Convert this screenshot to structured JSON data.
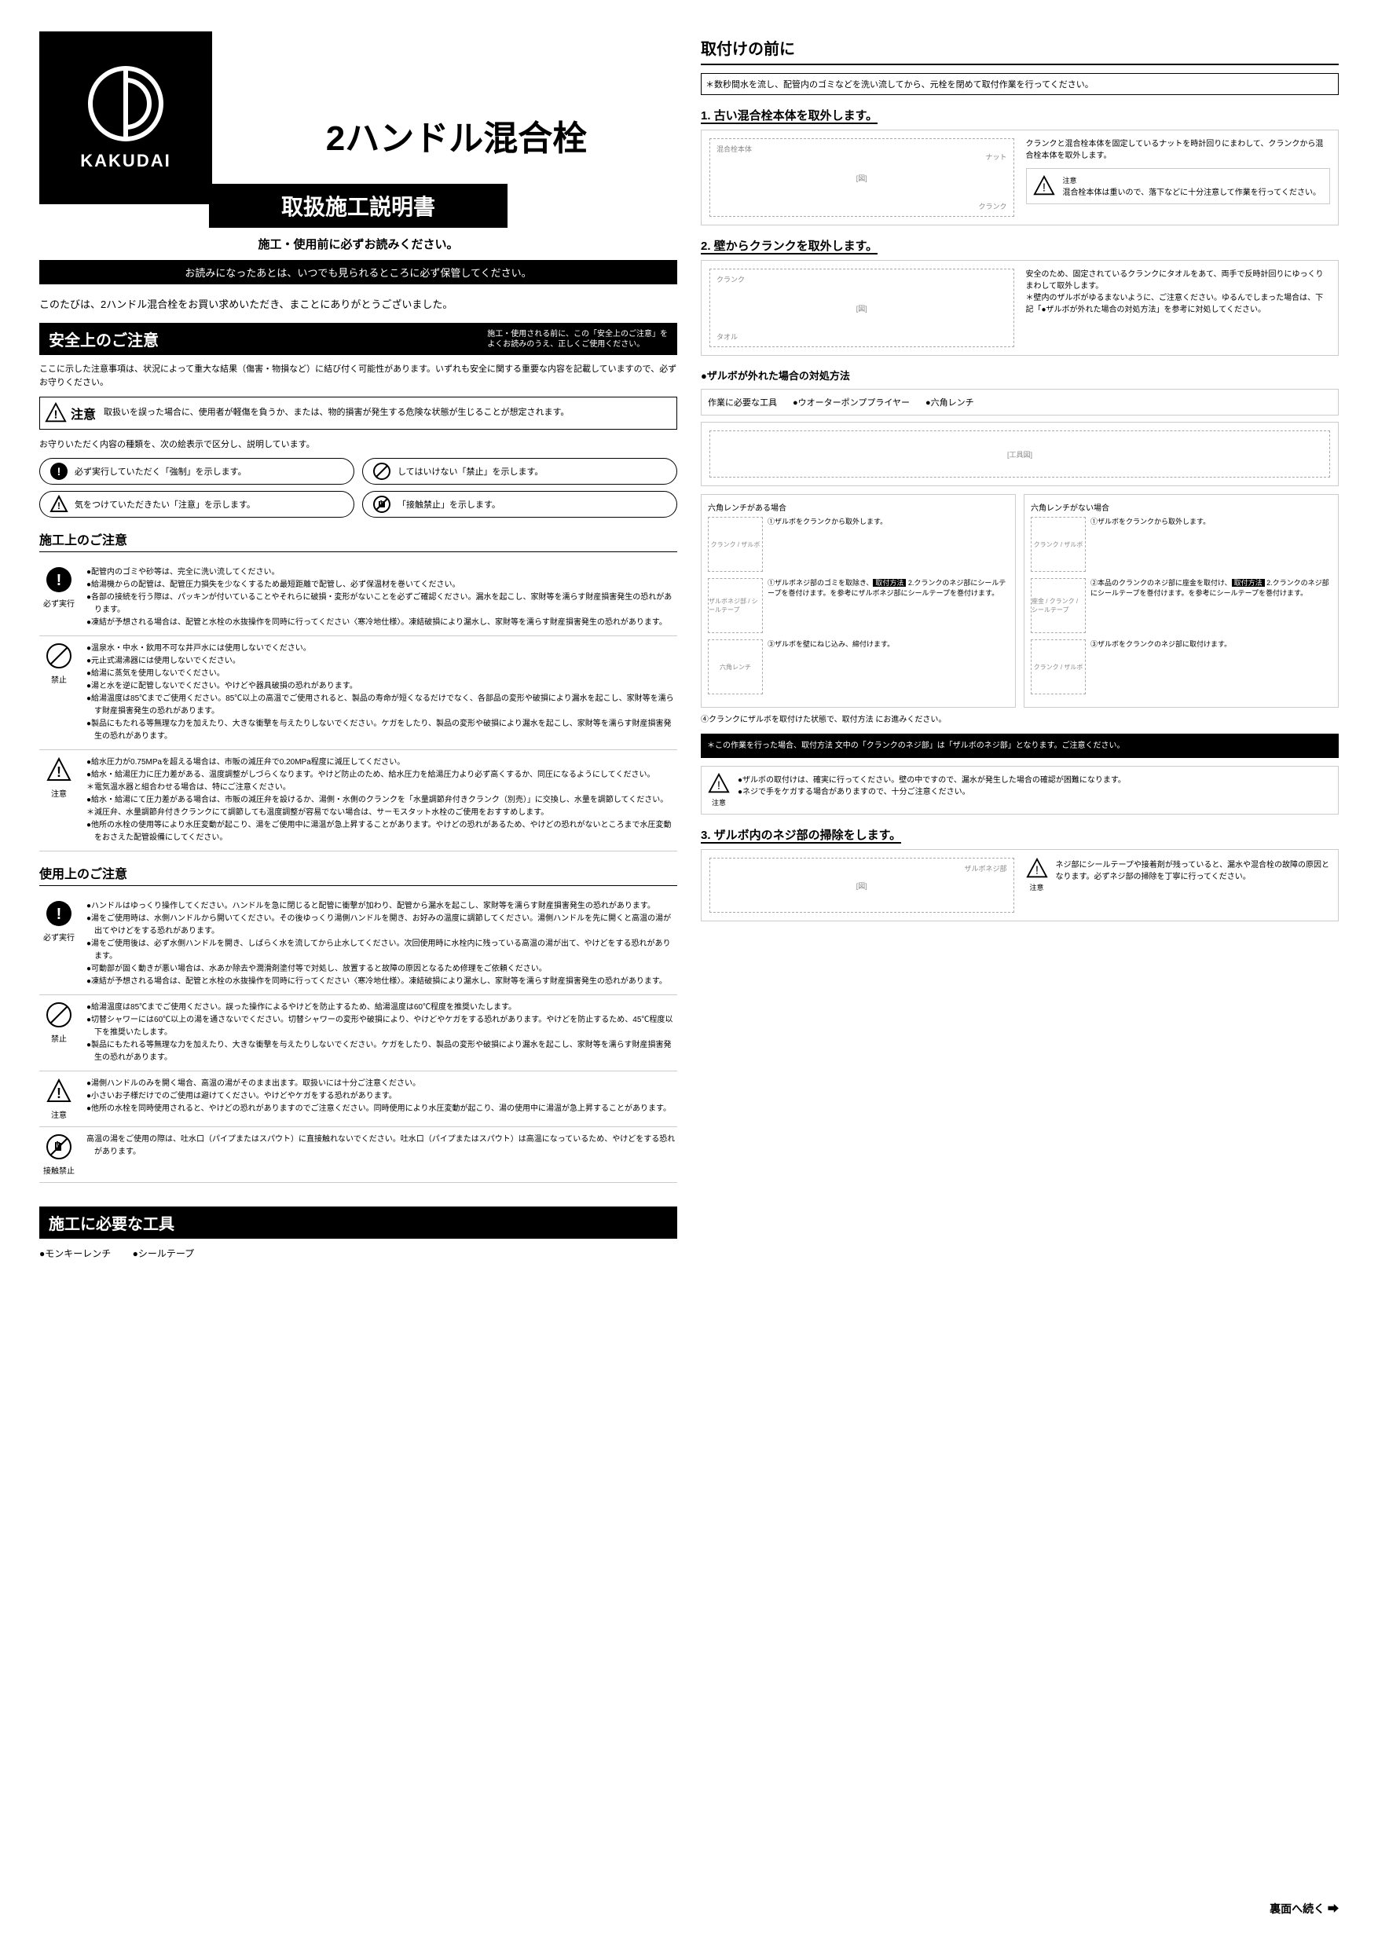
{
  "brand": "KAKUDAI",
  "product_title": "2ハンドル混合栓",
  "manual_title": "取扱施工説明書",
  "read_before": "施工・使用前に必ずお読みください。",
  "keep_note": "お読みになったあとは、いつでも見られるところに必ず保管してください。",
  "thanks": "このたびは、2ハンドル混合栓をお買い求めいただき、まことにありがとうございました。",
  "safety": {
    "title": "安全上のご注意",
    "sub": "施工・使用される前に、この「安全上のご注意」を\nよくお読みのうえ、正しくご使用ください。",
    "intro": "ここに示した注意事項は、状況によって重大な結果（傷害・物損など）に結び付く可能性があります。いずれも安全に関する重要な内容を記載していますので、必ずお守りください。",
    "caution_label": "注意",
    "caution_text": "取扱いを誤った場合に、使用者が軽傷を負うか、または、物的損害が発生する危険な状態が生じることが想定されます。",
    "symbol_intro": "お守りいただく内容の種類を、次の絵表示で区分し、説明しています。",
    "symbols": [
      "必ず実行していただく「強制」を示します。",
      "してはいけない「禁止」を示します。",
      "気をつけていただきたい「注意」を示します。",
      "「接触禁止」を示します。"
    ]
  },
  "construction": {
    "title": "施工上のご注意",
    "rows": [
      {
        "icon": "must",
        "label": "必ず実行",
        "items": [
          "●配管内のゴミや砂等は、完全に洗い流してください。",
          "●給湯機からの配管は、配管圧力損失を少なくするため最短距離で配管し、必ず保温材を巻いてください。",
          "●各部の接続を行う際は、パッキンが付いていることやそれらに破損・変形がないことを必ずご確認ください。漏水を起こし、家財等を濡らす財産損害発生の恐れがあります。",
          "●凍結が予想される場合は、配管と水栓の水抜操作を同時に行ってください〈寒冷地仕様〉。凍結破損により漏水し、家財等を濡らす財産損害発生の恐れがあります。"
        ]
      },
      {
        "icon": "forbid",
        "label": "禁止",
        "items": [
          "●温泉水・中水・飲用不可な井戸水には使用しないでください。",
          "●元止式湯沸器には使用しないでください。",
          "●給湯に蒸気を使用しないでください。",
          "●湯と水を逆に配管しないでください。やけどや器具破損の恐れがあります。",
          "●給湯温度は85℃までご使用ください。85℃以上の高温でご使用されると、製品の寿命が短くなるだけでなく、各部品の変形や破損により漏水を起こし、家財等を濡らす財産損害発生の恐れがあります。",
          "●製品にもたれる等無理な力を加えたり、大きな衝撃を与えたりしないでください。ケガをしたり、製品の変形や破損により漏水を起こし、家財等を濡らす財産損害発生の恐れがあります。"
        ]
      },
      {
        "icon": "caution",
        "label": "注意",
        "items": [
          "●給水圧力が0.75MPaを超える場合は、市販の減圧弁で0.20MPa程度に減圧してください。",
          "●給水・給湯圧力に圧力差がある、温度調整がしづらくなります。やけど防止のため、給水圧力を給湯圧力より必ず高くするか、同圧になるようにしてください。",
          "＊電気温水器と組合わせる場合は、特にご注意ください。",
          "●給水・給湯にて圧力差がある場合は、市販の減圧弁を設けるか、湯側・水側のクランクを「水量調節弁付きクランク（別売）」に交換し、水量を調節してください。",
          "＊減圧弁、水量調節弁付きクランクにて調節しても温度調整が容易でない場合は、サーモスタット水栓のご使用をおすすめします。",
          "●他所の水栓の使用等により水圧変動が起こり、湯をご使用中に湯温が急上昇することがあります。やけどの恐れがあるため、やけどの恐れがないところまで水圧変動をおさえた配管設備にしてください。"
        ]
      }
    ]
  },
  "usage": {
    "title": "使用上のご注意",
    "rows": [
      {
        "icon": "must",
        "label": "必ず実行",
        "items": [
          "●ハンドルはゆっくり操作してください。ハンドルを急に閉じると配管に衝撃が加わり、配管から漏水を起こし、家財等を濡らす財産損害発生の恐れがあります。",
          "●湯をご使用時は、水側ハンドルから開いてください。その後ゆっくり湯側ハンドルを開き、お好みの温度に調節してください。湯側ハンドルを先に開くと高温の湯が出てやけどをする恐れがあります。",
          "●湯をご使用後は、必ず水側ハンドルを開き、しばらく水を流してから止水してください。次回使用時に水栓内に残っている高温の湯が出て、やけどをする恐れがあります。",
          "●可動部が固く動きが悪い場合は、水あか除去や潤滑剤塗付等で対処し、放置すると故障の原因となるため修理をご依頼ください。",
          "●凍結が予想される場合は、配管と水栓の水抜操作を同時に行ってください〈寒冷地仕様〉。凍結破損により漏水し、家財等を濡らす財産損害発生の恐れがあります。"
        ]
      },
      {
        "icon": "forbid",
        "label": "禁止",
        "items": [
          "●給湯温度は85℃までご使用ください。誤った操作によるやけどを防止するため、給湯温度は60℃程度を推奨いたします。",
          "●切替シャワーには60℃以上の湯を通さないでください。切替シャワーの変形や破損により、やけどやケガをする恐れがあります。やけどを防止するため、45℃程度以下を推奨いたします。",
          "●製品にもたれる等無理な力を加えたり、大きな衝撃を与えたりしないでください。ケガをしたり、製品の変形や破損により漏水を起こし、家財等を濡らす財産損害発生の恐れがあります。"
        ]
      },
      {
        "icon": "caution",
        "label": "注意",
        "items": [
          "●湯側ハンドルのみを開く場合、高温の湯がそのまま出ます。取扱いには十分ご注意ください。",
          "●小さいお子様だけでのご使用は避けてください。やけどやケガをする恐れがあります。",
          "●他所の水栓を同時使用されると、やけどの恐れがありますのでご注意ください。同時使用により水圧変動が起こり、湯の使用中に湯温が急上昇することがあります。"
        ]
      },
      {
        "icon": "notouch",
        "label": "接触禁止",
        "items": [
          "高温の湯をご使用の際は、吐水口（パイプまたはスパウト）に直接触れないでください。吐水口（パイプまたはスパウト）は高温になっているため、やけどをする恐れがあります。"
        ]
      }
    ]
  },
  "tools": {
    "title": "施工に必要な工具",
    "items": [
      "●モンキーレンチ",
      "●シールテープ"
    ]
  },
  "before": {
    "title": "取付けの前に",
    "pre": "＊数秒間水を流し、配管内のゴミなどを洗い流してから、元栓を閉めて取付作業を行ってください。",
    "step1_title": "1. 古い混合栓本体を取外します。",
    "step1_labels": {
      "body": "混合栓本体",
      "nut": "ナット",
      "crank": "クランク"
    },
    "step1_text": "クランクと混合栓本体を固定しているナットを時計回りにまわして、クランクから混合栓本体を取外します。",
    "step1_caution": "混合栓本体は重いので、落下などに十分注意して作業を行ってください。",
    "step2_title": "2. 壁からクランクを取外します。",
    "step2_labels": {
      "crank": "クランク",
      "towel": "タオル"
    },
    "step2_text": "安全のため、固定されているクランクにタオルをあて、両手で反時計回りにゆっくりまわして取外します。\n＊壁内のザルボがゆるまないように、ご注意ください。ゆるんでしまった場合は、下記「●ザルボが外れた場合の対処方法」を参考に対処してください。",
    "zarubo_title": "●ザルボが外れた場合の対処方法",
    "zarubo_tools_label": "作業に必要な工具",
    "zarubo_tools": [
      "●ウオーターポンププライヤー",
      "●六角レンチ"
    ],
    "zarubo_left_title": "六角レンチがある場合",
    "zarubo_right_title": "六角レンチがない場合",
    "zarubo_left": [
      {
        "labels": "クランク / ザルボ",
        "text": "①ザルボをクランクから取外します。"
      },
      {
        "labels": "ザルボネジ部 / シールテープ",
        "text": "①ザルボネジ部のゴミを取除き、取付方法 2.クランクのネジ部にシールテープを巻付けます。を参考にザルボネジ部にシールテープを巻付けます。"
      },
      {
        "labels": "六角レンチ",
        "text": "③ザルボを壁にねじ込み、締付けます。"
      }
    ],
    "zarubo_right": [
      {
        "labels": "クランク / ザルボ",
        "text": "①ザルボをクランクから取外します。"
      },
      {
        "labels": "座金 / クランク / シールテープ",
        "text": "②本品のクランクのネジ部に座金を取付け、取付方法 2.クランクのネジ部にシールテープを巻付けます。を参考にシールテープを巻付けます。"
      },
      {
        "labels": "クランク / ザルボ",
        "text": "③ザルボをクランクのネジ部に取付けます。"
      }
    ],
    "zarubo_after": "④クランクにザルボを取付けた状態で、取付方法 にお進みください。",
    "zarubo_black": "＊この作業を行った場合、取付方法 文中の「クランクのネジ部」は「ザルボのネジ部」となります。ご注意ください。",
    "zarubo_caution": "●ザルボの取付けは、確実に行ってください。壁の中ですので、漏水が発生した場合の確認が困難になります。\n●ネジで手をケガする場合がありますので、十分ご注意ください。",
    "step3_title": "3. ザルボ内のネジ部の掃除をします。",
    "step3_label": "ザルボネジ部",
    "step3_text": "ネジ部にシールテープや接着剤が残っていると、漏水や混合栓の故障の原因となります。必ずネジ部の掃除を丁寧に行ってください。"
  },
  "caution_word": "注意",
  "continue": "裏面へ続く ➡"
}
